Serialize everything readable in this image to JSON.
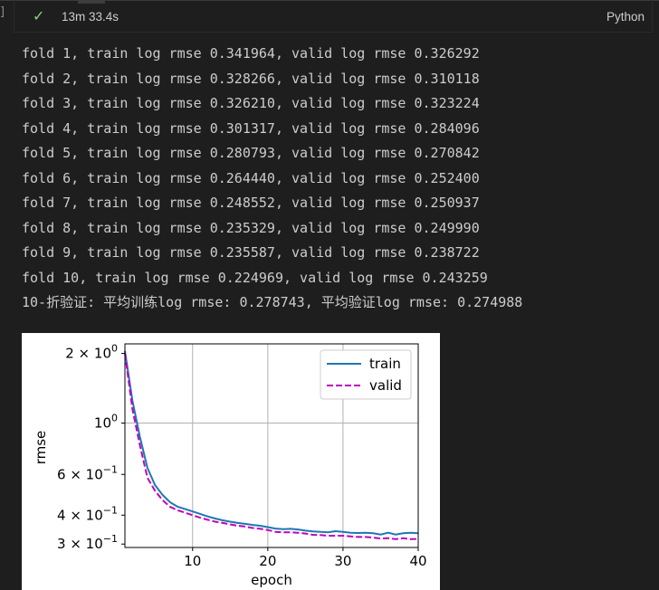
{
  "cell": {
    "gutter_label": "]",
    "status": {
      "elapsed": "13m 33.4s",
      "language": "Python"
    }
  },
  "output": {
    "lines": [
      "fold 1, train log rmse 0.341964, valid log rmse 0.326292",
      "fold 2, train log rmse 0.328266, valid log rmse 0.310118",
      "fold 3, train log rmse 0.326210, valid log rmse 0.323224",
      "fold 4, train log rmse 0.301317, valid log rmse 0.284096",
      "fold 5, train log rmse 0.280793, valid log rmse 0.270842",
      "fold 6, train log rmse 0.264440, valid log rmse 0.252400",
      "fold 7, train log rmse 0.248552, valid log rmse 0.250937",
      "fold 8, train log rmse 0.235329, valid log rmse 0.249990",
      "fold 9, train log rmse 0.235587, valid log rmse 0.238722",
      "fold 10, train log rmse 0.224969, valid log rmse 0.243259",
      "10-折验证: 平均训练log rmse: 0.278743, 平均验证log rmse: 0.274988"
    ]
  },
  "chart_data": {
    "type": "line",
    "xlabel": "epoch",
    "ylabel": "rmse",
    "yscale": "log",
    "xlim": [
      1,
      40
    ],
    "ylim": [
      0.29,
      2.2
    ],
    "grid": true,
    "legend_position": "top-right",
    "x_ticks": [
      {
        "value": 10,
        "label": "10"
      },
      {
        "value": 20,
        "label": "20"
      },
      {
        "value": 30,
        "label": "30"
      },
      {
        "value": 40,
        "label": "40"
      }
    ],
    "y_ticks": [
      {
        "value": 2.0,
        "label": "2 × 10",
        "exp": "0"
      },
      {
        "value": 1.0,
        "label": "10",
        "exp": "0"
      },
      {
        "value": 0.6,
        "label": "6 × 10",
        "exp": "−1"
      },
      {
        "value": 0.4,
        "label": "4 × 10",
        "exp": "−1"
      },
      {
        "value": 0.3,
        "label": "3 × 10",
        "exp": "−1"
      }
    ],
    "x": [
      1,
      2,
      3,
      4,
      5,
      6,
      7,
      8,
      9,
      10,
      11,
      12,
      13,
      14,
      15,
      16,
      17,
      18,
      19,
      20,
      21,
      22,
      23,
      24,
      25,
      26,
      27,
      28,
      29,
      30,
      31,
      32,
      33,
      34,
      35,
      36,
      37,
      38,
      39,
      40
    ],
    "series": [
      {
        "name": "train",
        "color": "#1f77b4",
        "style": "solid",
        "values": [
          2.05,
          1.25,
          0.87,
          0.64,
          0.54,
          0.49,
          0.455,
          0.435,
          0.425,
          0.415,
          0.405,
          0.395,
          0.387,
          0.38,
          0.375,
          0.37,
          0.367,
          0.363,
          0.36,
          0.355,
          0.35,
          0.348,
          0.349,
          0.347,
          0.343,
          0.34,
          0.339,
          0.337,
          0.341,
          0.339,
          0.336,
          0.335,
          0.336,
          0.334,
          0.33,
          0.336,
          0.33,
          0.334,
          0.336,
          0.334
        ]
      },
      {
        "name": "valid",
        "color": "#bf00bf",
        "style": "dashed",
        "values": [
          2.0,
          1.15,
          0.8,
          0.58,
          0.51,
          0.465,
          0.435,
          0.42,
          0.41,
          0.4,
          0.39,
          0.382,
          0.375,
          0.37,
          0.365,
          0.36,
          0.357,
          0.352,
          0.349,
          0.345,
          0.339,
          0.337,
          0.337,
          0.336,
          0.333,
          0.329,
          0.328,
          0.326,
          0.326,
          0.326,
          0.324,
          0.322,
          0.322,
          0.32,
          0.317,
          0.318,
          0.315,
          0.318,
          0.315,
          0.316
        ]
      }
    ]
  }
}
